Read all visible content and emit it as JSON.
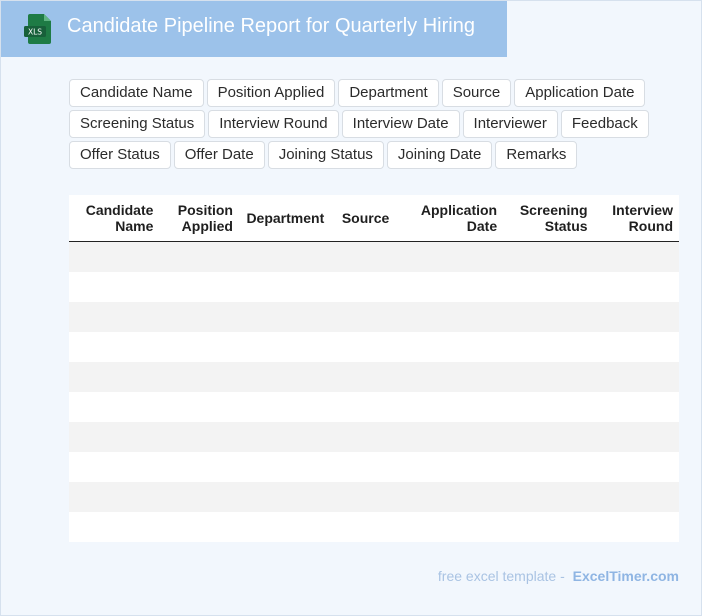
{
  "header": {
    "title": "Candidate Pipeline Report for Quarterly Hiring",
    "icon": "xls-file-icon",
    "icon_label": "XLS"
  },
  "fields": [
    "Candidate Name",
    "Position Applied",
    "Department",
    "Source",
    "Application Date",
    "Screening Status",
    "Interview Round",
    "Interview Date",
    "Interviewer",
    "Feedback",
    "Offer Status",
    "Offer Date",
    "Joining Status",
    "Joining Date",
    "Remarks"
  ],
  "table": {
    "columns": [
      {
        "line1": "Candidate",
        "line2": "Name"
      },
      {
        "line1": "Position",
        "line2": "Applied"
      },
      {
        "line1": "Department",
        "line2": ""
      },
      {
        "line1": "Source",
        "line2": ""
      },
      {
        "line1": "Application",
        "line2": "Date"
      },
      {
        "line1": "Screening",
        "line2": "Status"
      },
      {
        "line1": "Interview",
        "line2": "Round"
      }
    ],
    "row_count": 10
  },
  "footer": {
    "text": "free excel template -",
    "brand": "ExcelTimer.com"
  },
  "colors": {
    "header_bg": "#9cc2ea",
    "accent_green": "#1e7b45",
    "page_bg": "#f2f7fd"
  }
}
